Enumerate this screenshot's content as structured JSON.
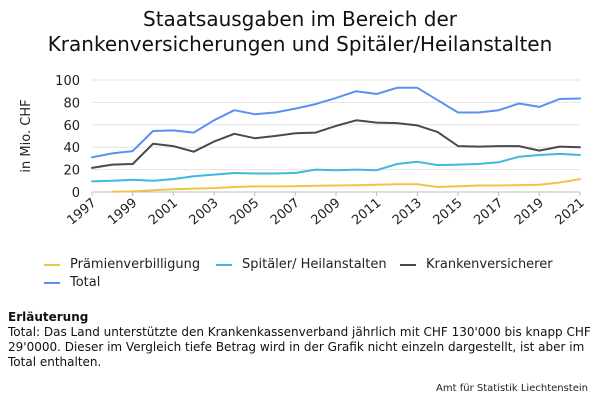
{
  "chart_data": {
    "type": "line",
    "title": [
      "Staatsausgaben im Bereich der",
      "Krankenversicherungen und Spitäler/Heilanstalten"
    ],
    "xlabel": "",
    "ylabel": "in Mio. CHF",
    "ylim": [
      0,
      100
    ],
    "yticks": [
      "0",
      "20",
      "40",
      "60",
      "80",
      "100"
    ],
    "xticks": [
      "1997",
      "1999",
      "2001",
      "2003",
      "2005",
      "2007",
      "2009",
      "2011",
      "2013",
      "2015",
      "2017",
      "2019",
      "2021"
    ],
    "grid": true,
    "legend_position": "bottom",
    "x": [
      1997,
      1998,
      1999,
      2000,
      2001,
      2002,
      2003,
      2004,
      2005,
      2006,
      2007,
      2008,
      2009,
      2010,
      2011,
      2012,
      2013,
      2014,
      2015,
      2016,
      2017,
      2018,
      2019,
      2020,
      2021
    ],
    "series": [
      {
        "name": "Prämienverbilligung",
        "color": "#f0c34a",
        "values": [
          null,
          0.2,
          0.5,
          1.5,
          2.5,
          3,
          3.5,
          4.5,
          5,
          5,
          5.2,
          5.5,
          5.8,
          6,
          6.5,
          7,
          7,
          4.5,
          5.2,
          5.8,
          5.8,
          6.2,
          6.5,
          8.5,
          11.5
        ]
      },
      {
        "name": "Spitäler/ Heilanstalten",
        "color": "#3fb8e0",
        "values": [
          9.5,
          10,
          11,
          10,
          11.5,
          14,
          15.5,
          17,
          16.5,
          16.5,
          17,
          20,
          19.5,
          20,
          19.5,
          25,
          27,
          24,
          24.5,
          25,
          26.5,
          31.5,
          33,
          34,
          33
        ]
      },
      {
        "name": "Krankenversicherer",
        "color": "#4a4a4a",
        "values": [
          21.5,
          24.5,
          25,
          43,
          41,
          36,
          45,
          52,
          48,
          50,
          52.5,
          53,
          59,
          64,
          62,
          61.5,
          59.5,
          53.5,
          41,
          40.5,
          41,
          41,
          37,
          40.5,
          40
        ]
      },
      {
        "name": "Total",
        "color": "#5b8ff5",
        "values": [
          31,
          34.5,
          36.5,
          54.5,
          55,
          53,
          64,
          73,
          69.5,
          71,
          74.5,
          78.5,
          84,
          90,
          87.5,
          93,
          93,
          82,
          71,
          71,
          73,
          79,
          76,
          83,
          83.5
        ]
      }
    ]
  },
  "legend": {
    "items": [
      {
        "label": "Prämienverbilligung",
        "color": "#f0c34a"
      },
      {
        "label": "Spitäler/ Heilanstalten",
        "color": "#3fb8e0"
      },
      {
        "label": "Krankenversicherer",
        "color": "#4a4a4a"
      },
      {
        "label": "Total",
        "color": "#5b8ff5"
      }
    ]
  },
  "note": {
    "heading": "Erläuterung",
    "text": "Total: Das Land unterstützte den Krankenkassenverband jährlich mit CHF 130'000 bis knapp CHF 29'0000. Dieser im Vergleich tiefe Betrag wird in der Grafik nicht einzeln dargestellt, ist aber im Total enthalten."
  },
  "source": "Amt für Statistik Liechtenstein"
}
